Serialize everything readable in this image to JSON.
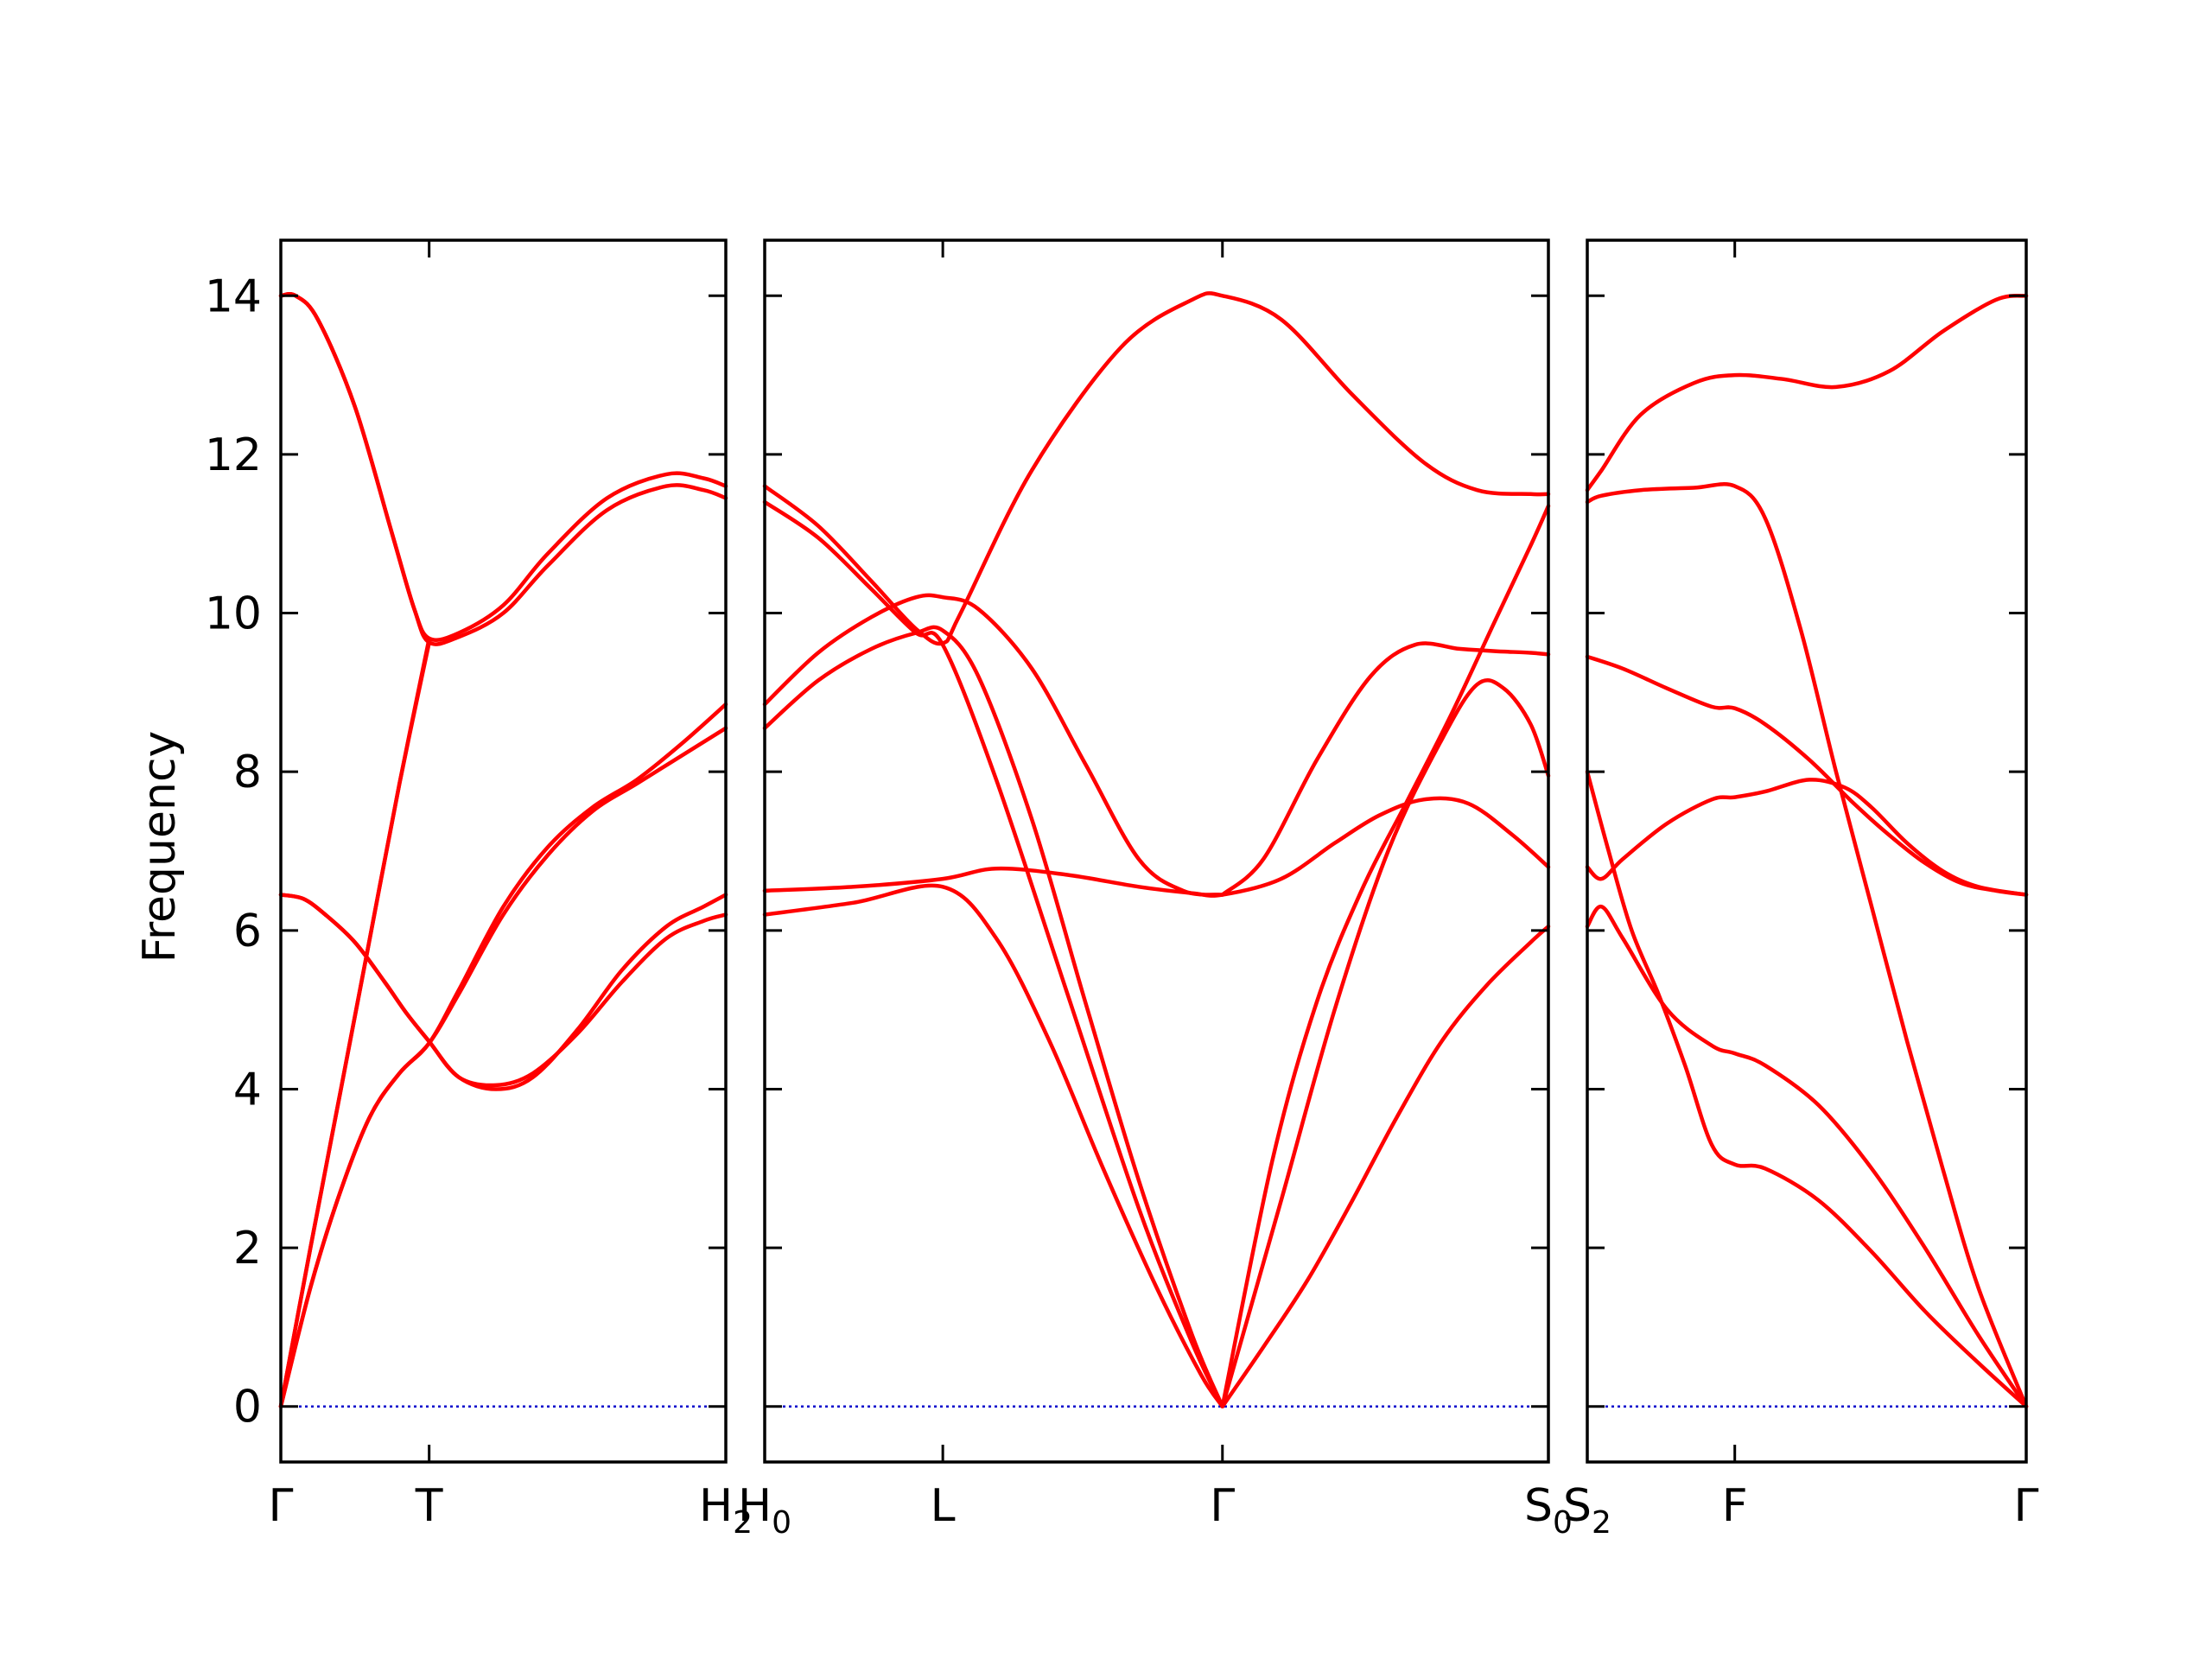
{
  "chart_data": {
    "type": "line",
    "title": "",
    "xlabel": "",
    "ylabel": "Frequency",
    "ylim": [
      -0.7,
      14.7
    ],
    "yticks": [
      0,
      2,
      4,
      6,
      8,
      10,
      12,
      14
    ],
    "grid": false,
    "legend": "none",
    "colors": {
      "bands": "#ff0000",
      "zero_line": "#0000cc",
      "axes": "#000000"
    },
    "panels": [
      {
        "id": "p1",
        "xlim": [
          0,
          3
        ],
        "ticks": [
          {
            "x": 0,
            "label": "Γ",
            "sub": ""
          },
          {
            "x": 1,
            "label": "T",
            "sub": ""
          },
          {
            "x": 3,
            "label": "H",
            "sub": "2"
          }
        ],
        "series": [
          {
            "x": [
              0,
              0.1,
              0.25,
              0.5,
              0.75,
              0.9,
              1,
              1.2,
              1.5,
              1.8,
              2.2,
              2.6,
              2.85,
              3
            ],
            "values": [
              14.0,
              14.0,
              13.7,
              12.6,
              11.0,
              10.05,
              9.63,
              9.7,
              10.0,
              10.6,
              11.3,
              11.6,
              11.55,
              11.45
            ]
          },
          {
            "x": [
              0,
              0.1,
              0.25,
              0.5,
              0.75,
              0.9,
              1,
              1.2,
              1.5,
              1.8,
              2.2,
              2.6,
              2.85,
              3
            ],
            "values": [
              14.0,
              14.0,
              13.7,
              12.6,
              11.0,
              10.05,
              9.68,
              9.75,
              10.1,
              10.75,
              11.45,
              11.75,
              11.7,
              11.6
            ]
          },
          {
            "x": [
              0,
              0.2,
              0.4,
              0.6,
              0.8,
              1
            ],
            "values": [
              0,
              2.0,
              3.95,
              5.9,
              7.85,
              9.63
            ]
          },
          {
            "x": [
              0,
              0.2,
              0.4,
              0.6,
              0.8,
              1
            ],
            "values": [
              0,
              2.0,
              3.95,
              5.9,
              7.85,
              9.68
            ]
          },
          {
            "x": [
              0,
              0.2,
              0.4,
              0.6,
              0.8,
              1,
              1.2,
              1.5,
              1.8,
              2.1,
              2.4,
              2.7,
              3
            ],
            "values": [
              0,
              1.5,
              2.7,
              3.65,
              4.2,
              4.58,
              5.25,
              6.3,
              7.05,
              7.55,
              7.9,
              8.35,
              8.85
            ]
          },
          {
            "x": [
              0,
              0.2,
              0.4,
              0.6,
              0.8,
              1,
              1.2,
              1.5,
              1.8,
              2.1,
              2.4,
              2.7,
              3
            ],
            "values": [
              0,
              1.5,
              2.7,
              3.65,
              4.2,
              4.58,
              5.2,
              6.2,
              6.95,
              7.5,
              7.85,
              8.2,
              8.55
            ]
          },
          {
            "x": [
              0,
              0.15,
              0.3,
              0.5,
              0.7,
              0.85,
              1,
              1.2,
              1.45,
              1.7,
              2.0,
              2.3,
              2.6,
              2.85,
              3
            ],
            "values": [
              6.45,
              6.4,
              6.2,
              5.85,
              5.35,
              4.95,
              4.6,
              4.15,
              4.0,
              4.15,
              4.75,
              5.5,
              6.05,
              6.3,
              6.45
            ]
          },
          {
            "x": [
              0,
              0.15,
              0.3,
              0.5,
              0.7,
              0.85,
              1,
              1.2,
              1.45,
              1.7,
              2.0,
              2.3,
              2.6,
              2.85,
              3
            ],
            "values": [
              6.45,
              6.4,
              6.2,
              5.85,
              5.35,
              4.95,
              4.6,
              4.15,
              4.05,
              4.2,
              4.7,
              5.35,
              5.9,
              6.12,
              6.2
            ]
          }
        ]
      },
      {
        "id": "p2",
        "xlim": [
          0,
          4.4
        ],
        "ticks": [
          {
            "x": 0,
            "label": "H",
            "sub": "0"
          },
          {
            "x": 1,
            "label": "L",
            "sub": ""
          },
          {
            "x": 2.57,
            "label": "Γ",
            "sub": ""
          },
          {
            "x": 4.4,
            "label": "S",
            "sub": "0"
          }
        ],
        "series": [
          {
            "x": [
              0,
              0.3,
              0.6,
              0.85,
              1,
              1.1,
              1.5,
              2.0,
              2.4,
              2.57,
              2.9,
              3.3,
              3.7,
              4.0,
              4.3,
              4.4
            ],
            "values": [
              11.6,
              11.1,
              10.4,
              9.8,
              9.62,
              10.0,
              11.8,
              13.35,
              13.95,
              14.0,
              13.7,
              12.75,
              11.9,
              11.55,
              11.5,
              11.5
            ]
          },
          {
            "x": [
              0,
              0.3,
              0.6,
              0.85,
              1,
              1.3,
              1.7,
              2.1,
              2.4,
              2.57
            ],
            "values": [
              11.4,
              10.95,
              10.3,
              9.75,
              9.6,
              7.9,
              5.2,
              2.5,
              0.8,
              0
            ]
          },
          {
            "x": [
              0,
              0.3,
              0.6,
              0.85,
              1,
              1.2,
              1.5,
              1.8,
              2.1,
              2.35,
              2.57
            ],
            "values": [
              8.85,
              9.5,
              9.95,
              10.2,
              10.2,
              10.05,
              9.3,
              8.1,
              6.9,
              6.5,
              6.45
            ]
          },
          {
            "x": [
              2.57,
              2.8,
              3.1,
              3.4,
              3.65,
              3.9,
              4.1,
              4.3,
              4.4
            ],
            "values": [
              6.45,
              6.9,
              8.15,
              9.2,
              9.6,
              9.55,
              9.52,
              9.5,
              9.48
            ]
          },
          {
            "x": [
              0,
              0.3,
              0.6,
              0.85,
              1,
              1.2,
              1.5,
              1.8,
              2.1,
              2.4,
              2.57
            ],
            "values": [
              8.55,
              9.15,
              9.55,
              9.75,
              9.78,
              9.2,
              7.4,
              5.1,
              2.85,
              0.9,
              0
            ]
          },
          {
            "x": [
              2.57,
              2.9,
              3.2,
              3.5,
              3.8,
              4.0,
              4.15,
              4.3,
              4.4
            ],
            "values": [
              0,
              2.6,
              5.0,
              7.0,
              8.4,
              9.1,
              9.05,
              8.6,
              7.95
            ]
          },
          {
            "x": [
              0,
              0.5,
              1,
              1.3,
              1.7,
              2.1,
              2.4,
              2.57,
              2.9,
              3.2,
              3.45,
              3.7,
              3.95,
              4.2,
              4.4
            ],
            "values": [
              6.5,
              6.55,
              6.65,
              6.78,
              6.7,
              6.55,
              6.47,
              6.45,
              6.65,
              7.1,
              7.45,
              7.65,
              7.6,
              7.2,
              6.8
            ]
          },
          {
            "x": [
              0,
              0.5,
              1,
              1.3,
              1.6,
              1.9,
              2.2,
              2.45,
              2.57
            ],
            "values": [
              6.2,
              6.35,
              6.55,
              5.9,
              4.6,
              3.0,
              1.5,
              0.4,
              0
            ]
          },
          {
            "x": [
              2.57,
              2.8,
              3.05,
              3.3,
              3.55,
              3.8,
              4.05,
              4.3,
              4.4
            ],
            "values": [
              0,
              0.75,
              1.6,
              2.6,
              3.65,
              4.6,
              5.3,
              5.85,
              6.05
            ]
          },
          {
            "x": [
              2.57,
              2.85,
              3.1,
              3.35,
              3.6,
              3.85,
              4.1,
              4.3,
              4.4
            ],
            "values": [
              0,
              3.1,
              5.1,
              6.5,
              7.6,
              8.7,
              9.9,
              10.85,
              11.35
            ]
          }
        ]
      },
      {
        "id": "p3",
        "xlim": [
          0,
          2.47
        ],
        "ticks": [
          {
            "x": 0,
            "label": "S",
            "sub": "2"
          },
          {
            "x": 0.83,
            "label": "F",
            "sub": ""
          },
          {
            "x": 2.47,
            "label": "Γ",
            "sub": ""
          }
        ],
        "series": [
          {
            "x": [
              0,
              0.08,
              0.3,
              0.6,
              0.83,
              1.1,
              1.4,
              1.7,
              2.0,
              2.3,
              2.47
            ],
            "values": [
              11.55,
              11.8,
              12.5,
              12.9,
              13.0,
              12.95,
              12.85,
              13.05,
              13.55,
              13.95,
              14.0
            ]
          },
          {
            "x": [
              0,
              0.08,
              0.3,
              0.6,
              0.83,
              1.0,
              1.2,
              1.4,
              1.6,
              1.8,
              2.0,
              2.2,
              2.47
            ],
            "values": [
              11.4,
              11.48,
              11.55,
              11.58,
              11.6,
              11.2,
              9.8,
              8.0,
              6.3,
              4.6,
              3.0,
              1.5,
              0
            ]
          },
          {
            "x": [
              0,
              0.2,
              0.45,
              0.7,
              0.83,
              1.0,
              1.25,
              1.5,
              1.7,
              1.9,
              2.1,
              2.3,
              2.47
            ],
            "values": [
              9.45,
              9.3,
              9.05,
              8.82,
              8.8,
              8.6,
              8.15,
              7.6,
              7.2,
              6.85,
              6.6,
              6.5,
              6.45
            ]
          },
          {
            "x": [
              0,
              0.08,
              0.2,
              0.45,
              0.7,
              0.83,
              1.0,
              1.25,
              1.45,
              1.6,
              1.8,
              2.0,
              2.2,
              2.47
            ],
            "values": [
              6.8,
              6.65,
              6.9,
              7.35,
              7.65,
              7.68,
              7.75,
              7.9,
              7.8,
              7.55,
              7.1,
              6.75,
              6.55,
              6.45
            ]
          },
          {
            "x": [
              0,
              0.08,
              0.2,
              0.45,
              0.7,
              0.83,
              1.0,
              1.3,
              1.6,
              1.9,
              2.2,
              2.47
            ],
            "values": [
              6.05,
              6.3,
              5.9,
              5.0,
              4.55,
              4.45,
              4.3,
              3.8,
              3.0,
              2.0,
              0.9,
              0
            ]
          },
          {
            "x": [
              0,
              0.12,
              0.25,
              0.4,
              0.55,
              0.7,
              0.83,
              1.0,
              1.3,
              1.6,
              1.9,
              2.2,
              2.47
            ],
            "values": [
              8.0,
              7.0,
              6.0,
              5.2,
              4.3,
              3.3,
              3.05,
              3.0,
              2.6,
              1.95,
              1.2,
              0.55,
              0
            ]
          }
        ]
      }
    ]
  }
}
